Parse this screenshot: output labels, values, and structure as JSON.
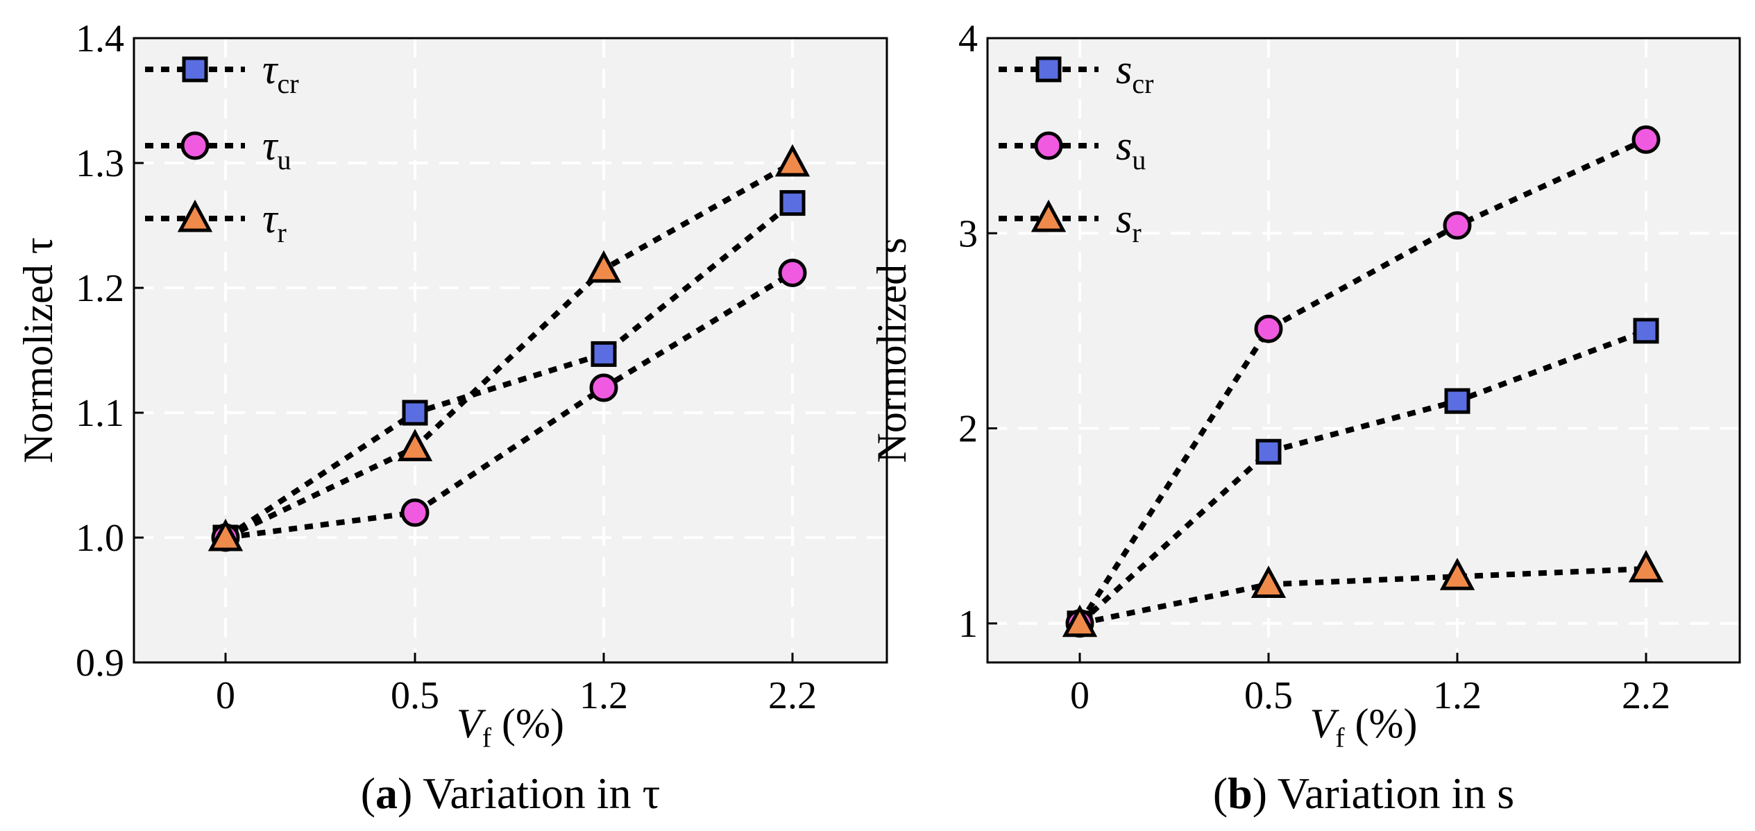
{
  "chart_data": [
    {
      "type": "line",
      "panel": "a",
      "caption_letter": "a",
      "caption_open": "(",
      "caption_close": ")",
      "caption_rest": " Variation in τ",
      "xlabel_main": "V",
      "xlabel_sub": "f",
      "xlabel_rest": " (%)",
      "ylabel": "Normolized τ",
      "categories": [
        "0",
        "0.5",
        "1.2",
        "2.2"
      ],
      "ylim": [
        0.9,
        1.4
      ],
      "yticks": [
        "0.9",
        "1.0",
        "1.1",
        "1.2",
        "1.3",
        "1.4"
      ],
      "ytick_values": [
        0.9,
        1.0,
        1.1,
        1.2,
        1.3,
        1.4
      ],
      "grid": true,
      "legend_position": "upper-left",
      "series": [
        {
          "name": "τcr",
          "name_main": "τ",
          "name_sub": "cr",
          "marker": "square",
          "color": "#5b6ee1",
          "values": [
            1.0,
            1.1,
            1.147,
            1.268
          ]
        },
        {
          "name": "τu",
          "name_main": "τ",
          "name_sub": "u",
          "marker": "circle",
          "color": "#f05ae0",
          "values": [
            1.0,
            1.02,
            1.12,
            1.212
          ]
        },
        {
          "name": "τr",
          "name_main": "τ",
          "name_sub": "r",
          "marker": "triangle",
          "color": "#f08a4b",
          "values": [
            1.0,
            1.072,
            1.215,
            1.3
          ]
        }
      ]
    },
    {
      "type": "line",
      "panel": "b",
      "caption_letter": "b",
      "caption_open": "(",
      "caption_close": ")",
      "caption_rest": " Variation in s",
      "xlabel_main": "V",
      "xlabel_sub": "f",
      "xlabel_rest": " (%)",
      "ylabel": "Normolized s",
      "categories": [
        "0",
        "0.5",
        "1.2",
        "2.2"
      ],
      "ylim": [
        0.8,
        4.0
      ],
      "yticks": [
        "1",
        "2",
        "3",
        "4"
      ],
      "ytick_values": [
        1,
        2,
        3,
        4
      ],
      "grid": true,
      "legend_position": "upper-left",
      "series": [
        {
          "name": "scr",
          "name_main": "s",
          "name_sub": "cr",
          "marker": "square",
          "color": "#5b6ee1",
          "values": [
            1.0,
            1.88,
            2.14,
            2.5
          ]
        },
        {
          "name": "su",
          "name_main": "s",
          "name_sub": "u",
          "marker": "circle",
          "color": "#f05ae0",
          "values": [
            1.0,
            2.51,
            3.04,
            3.48
          ]
        },
        {
          "name": "sr",
          "name_main": "s",
          "name_sub": "r",
          "marker": "triangle",
          "color": "#f08a4b",
          "values": [
            1.0,
            1.2,
            1.24,
            1.28
          ]
        }
      ]
    }
  ]
}
